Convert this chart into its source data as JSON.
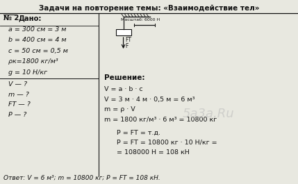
{
  "title": "Задачи на повторение темы: «Взаимодействие тел»",
  "problem_number": "№ 2.",
  "dado_label": "Дано:",
  "given": [
    "a = 300 см = 3 м",
    "b = 400 см = 4 м",
    "c = 50 см = 0,5 м",
    "ρк=1800 кг/м³",
    "g = 10 Н/кг"
  ],
  "find": [
    "V — ?",
    "m — ?",
    "FТ — ?",
    "P — ?"
  ],
  "reshenie_label": "Решение:",
  "solution_lines": [
    "V = a · b · c",
    "V = 3 м · 4 м · 0,5 м = 6 м³",
    "m = ρ · V",
    "m = 1800 кг/м³ · 6 м³ = 10800 кг"
  ],
  "solution_lines2": [
    "P = FТ = т.д.",
    "P = FТ = 10800 кг · 10 Н/кг =",
    "= 108000 Н = 108 кН"
  ],
  "answer": "Ответ: V = 6 м³; m = 10800 кг; P = FТ = 108 кН.",
  "bg_color": "#e8e8e0",
  "text_color": "#111111",
  "watermark": "5a3a.Ru",
  "col_split": 0.33,
  "title_fs": 7.5,
  "body_fs": 6.8,
  "bold_fs": 7.2
}
